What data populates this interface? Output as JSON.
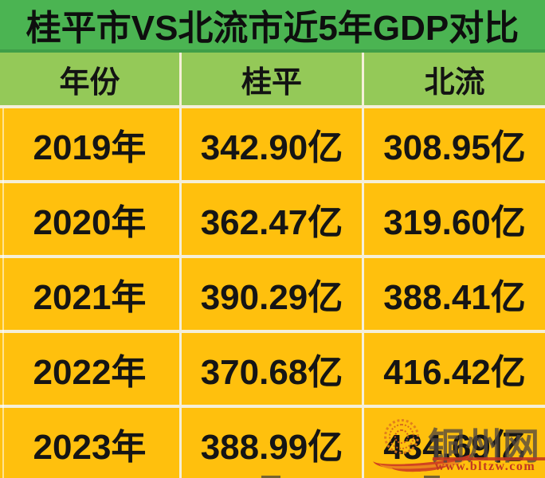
{
  "title": "桂平市VS北流市近5年GDP对比",
  "table": {
    "columns": [
      "年份",
      "桂平",
      "北流"
    ],
    "rows": [
      {
        "year": "2019年",
        "guiping": "342.90亿",
        "beiliu": "308.95亿"
      },
      {
        "year": "2020年",
        "guiping": "362.47亿",
        "beiliu": "319.60亿"
      },
      {
        "year": "2021年",
        "guiping": "390.29亿",
        "beiliu": "388.41亿"
      },
      {
        "year": "2022年",
        "guiping": "370.68亿",
        "beiliu": "416.42亿"
      },
      {
        "year": "2023年",
        "guiping": "388.99亿",
        "beiliu": "434.69亿"
      }
    ]
  },
  "watermark": {
    "site_name": "铜州网",
    "site_url": "www.bltzw.com"
  },
  "colors": {
    "title_bar_green": "#4bb452",
    "title_separator_green": "#3f9e48",
    "header_row_green": "#94c958",
    "data_row_yellow": "#ffc00d",
    "grid_gap": "#f5efd8",
    "text_black": "#121212",
    "watermark_red": "#c23722",
    "watermark_orange": "#df7a1e",
    "watermark_gray": "rgba(82,72,64,0.78)"
  },
  "chart_data": {
    "type": "table",
    "title": "桂平市VS北流市近5年GDP对比",
    "categories": [
      "2019年",
      "2020年",
      "2021年",
      "2022年",
      "2023年"
    ],
    "series": [
      {
        "name": "桂平",
        "values": [
          342.9,
          362.47,
          390.29,
          370.68,
          388.99
        ]
      },
      {
        "name": "北流",
        "values": [
          308.95,
          319.6,
          388.41,
          416.42,
          434.69
        ]
      }
    ],
    "unit": "亿",
    "layout": "comparison table, columns: 年份 | 桂平 | 北流"
  }
}
